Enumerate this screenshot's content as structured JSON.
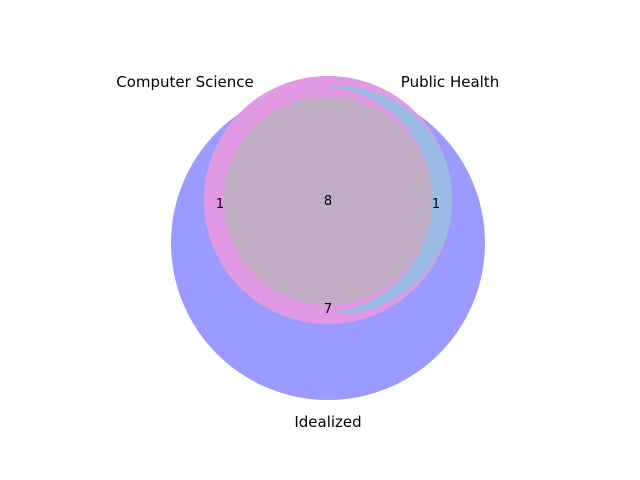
{
  "diagram": {
    "type": "venn3",
    "sets": [
      {
        "id": "A",
        "name": "Computer Science",
        "color": "#e099e2"
      },
      {
        "id": "B",
        "name": "Public Health",
        "color": "#9bbbe2"
      },
      {
        "id": "C",
        "name": "Idealized",
        "color": "#9b9bff"
      }
    ],
    "region_counts": {
      "only_A_and_C": "1",
      "only_B_and_C": "1",
      "A_and_B_and_C": "8",
      "A_and_B_only": "7"
    },
    "overlap_color": "#c0aec4"
  }
}
